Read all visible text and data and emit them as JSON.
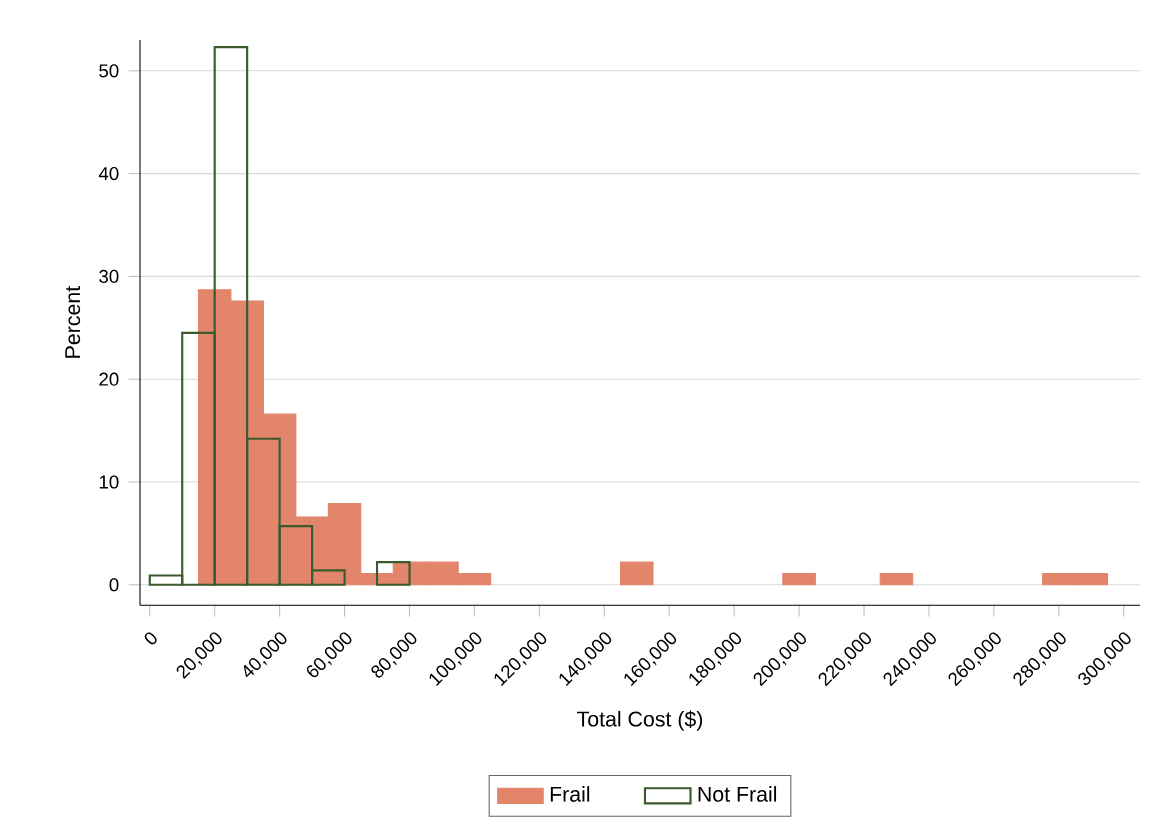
{
  "chart_data": {
    "type": "histogram",
    "xlabel": "Total Cost ($)",
    "ylabel": "Percent",
    "bins": [
      15000,
      25000,
      35000,
      45000,
      55000,
      65000,
      75000,
      85000,
      95000,
      105000,
      115000,
      125000,
      135000,
      145000,
      155000,
      165000,
      175000,
      185000,
      195000,
      205000,
      215000,
      225000,
      235000,
      245000,
      255000,
      265000,
      275000,
      285000,
      295000
    ],
    "series": [
      {
        "name": "Frail",
        "color": "#e3856b",
        "values": [
          28.7,
          27.6,
          16.6,
          6.6,
          7.9,
          1.1,
          2.2,
          2.2,
          1.1,
          0,
          0,
          0,
          0,
          2.2,
          0,
          0,
          0,
          0,
          1.1,
          0,
          0,
          1.1,
          0,
          0,
          0,
          0,
          1.1,
          1.1
        ]
      },
      {
        "name": "Not Frail",
        "color": "#3b5a2e",
        "bins": [
          0,
          10000,
          20000,
          30000,
          40000,
          50000,
          60000,
          70000,
          80000
        ],
        "values": [
          0.9,
          24.5,
          52.3,
          14.2,
          5.7,
          1.4,
          0,
          2.2
        ]
      }
    ],
    "xlim": [
      -3000,
      305000
    ],
    "ylim": [
      -2,
      53
    ],
    "xticks": [
      {
        "value": 0,
        "label": "0"
      },
      {
        "value": 20000,
        "label": "20,000"
      },
      {
        "value": 40000,
        "label": "40,000"
      },
      {
        "value": 60000,
        "label": "60,000"
      },
      {
        "value": 80000,
        "label": "80,000"
      },
      {
        "value": 100000,
        "label": "100,000"
      },
      {
        "value": 120000,
        "label": "120,000"
      },
      {
        "value": 140000,
        "label": "140,000"
      },
      {
        "value": 160000,
        "label": "160,000"
      },
      {
        "value": 180000,
        "label": "180,000"
      },
      {
        "value": 200000,
        "label": "200,000"
      },
      {
        "value": 220000,
        "label": "220,000"
      },
      {
        "value": 240000,
        "label": "240,000"
      },
      {
        "value": 260000,
        "label": "260,000"
      },
      {
        "value": 280000,
        "label": "280,000"
      },
      {
        "value": 300000,
        "label": "300,000"
      }
    ],
    "yticks": [
      0,
      10,
      20,
      30,
      40,
      50
    ],
    "grid": "y",
    "legend": "bottom"
  }
}
